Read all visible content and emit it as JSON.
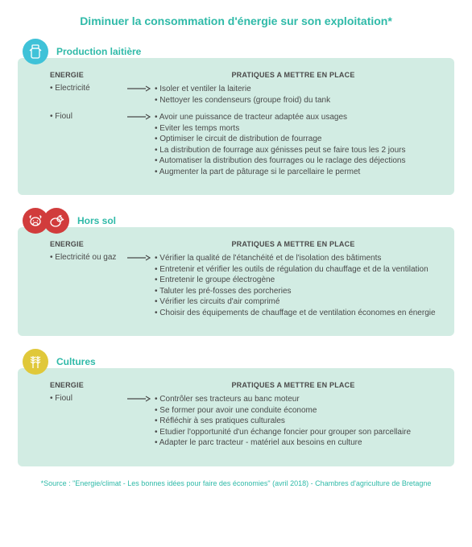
{
  "title": "Diminuer la consommation d'énergie sur son exploitation*",
  "colors": {
    "accent": "#2fbaa8",
    "panel_bg": "#d2ece3",
    "text": "#4a4a4a",
    "icon_blue": "#3fc2d8",
    "icon_red": "#d13c3c",
    "icon_yellow": "#e0c83a"
  },
  "labels": {
    "energie": "ENERGIE",
    "practices": "PRATIQUES A METTRE EN PLACE"
  },
  "sections": [
    {
      "title": "Production laitière",
      "icons": [
        {
          "name": "milk-can-icon",
          "bg": "#3fc2d8"
        }
      ],
      "rows": [
        {
          "energie": "Electricité",
          "practices": [
            "Isoler et ventiler la laiterie",
            "Nettoyer les condenseurs (groupe froid) du tank"
          ]
        },
        {
          "energie": "Fioul",
          "practices": [
            "Avoir une puissance de tracteur adaptée aux usages",
            "Eviter les temps morts",
            "Optimiser le circuit de distribution de fourrage",
            "La distribution de fourrage aux génisses peut se faire tous les 2 jours",
            "Automatiser la distribution des fourrages ou le raclage des déjections",
            "Augmenter la part de pâturage si le parcellaire le permet"
          ]
        }
      ]
    },
    {
      "title": "Hors sol",
      "icons": [
        {
          "name": "cow-icon",
          "bg": "#d13c3c"
        },
        {
          "name": "chicken-icon",
          "bg": "#d13c3c"
        }
      ],
      "rows": [
        {
          "energie": "Electricité ou gaz",
          "practices": [
            "Vérifier la qualité de l'étanchéité et de l'isolation des bâtiments",
            "Entretenir et vérifier les outils de régulation du chauffage et de la ventilation",
            "Entretenir le groupe électrogène",
            "Taluter les pré-fosses des porcheries",
            "Vérifier les circuits d'air comprimé",
            "Choisir des équipements de chauffage et de ventilation économes en énergie"
          ]
        }
      ]
    },
    {
      "title": "Cultures",
      "icons": [
        {
          "name": "wheat-icon",
          "bg": "#e0c83a"
        }
      ],
      "rows": [
        {
          "energie": "Fioul",
          "practices": [
            "Contrôler ses tracteurs au banc moteur",
            "Se former pour avoir une conduite économe",
            "Réfléchir à ses pratiques culturales",
            "Etudier l'opportunité d'un échange foncier pour grouper son parcellaire",
            "Adapter le parc tracteur - matériel aux besoins en culture"
          ]
        }
      ]
    }
  ],
  "source": "*Source : \"Energie/climat - Les bonnes idées pour faire des économies\" (avril 2018) - Chambres d'agriculture de Bretagne"
}
